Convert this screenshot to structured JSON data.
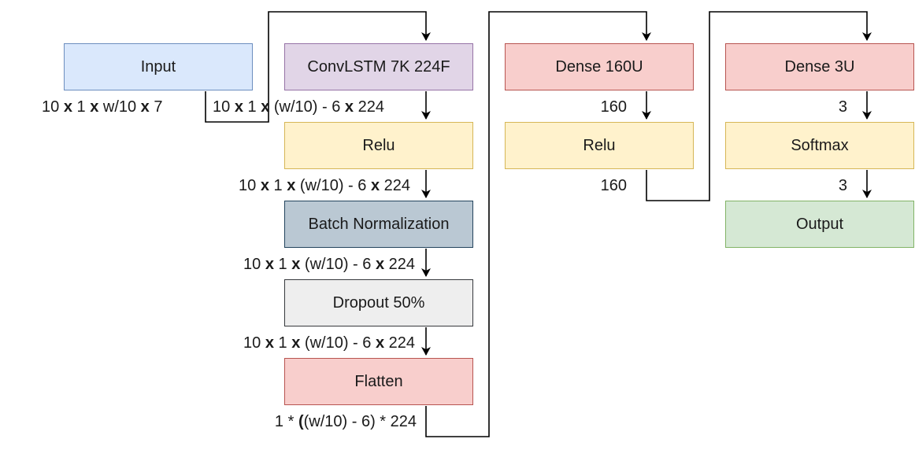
{
  "nodes": {
    "input": "Input",
    "convlstm": "ConvLSTM 7K 224F",
    "relu1": "Relu",
    "batchnorm": "Batch Normalization",
    "dropout": "Dropout 50%",
    "flatten": "Flatten",
    "dense160": "Dense 160U",
    "relu2": "Relu",
    "dense3": "Dense 3U",
    "softmax": "Softmax",
    "output": "Output"
  },
  "edge_labels": {
    "input_out": [
      "10 ",
      "x",
      " 1 ",
      "x",
      " w/10 ",
      "x",
      " 7"
    ],
    "convlstm_out": [
      "10 ",
      "x",
      " 1 ",
      "x",
      " (w/10) - 6 ",
      "x",
      " 224"
    ],
    "relu1_out": [
      "10 ",
      "x",
      " 1 ",
      "x",
      " (w/10) - 6 ",
      "x",
      " 224"
    ],
    "batchnorm_out": [
      "10 ",
      "x",
      " 1 ",
      "x",
      " (w/10) - 6 ",
      "x",
      " 224"
    ],
    "dropout_out": [
      "10 ",
      "x",
      " 1 ",
      "x",
      " (w/10) - 6 ",
      "x",
      " 224"
    ],
    "flatten_out": [
      "1 * ",
      "(",
      "(w/10) - 6) * 224"
    ],
    "dense160_out": "160",
    "relu2_out": "160",
    "dense3_out": "3",
    "softmax_out": "3"
  },
  "colors": {
    "edge": "#000000"
  }
}
